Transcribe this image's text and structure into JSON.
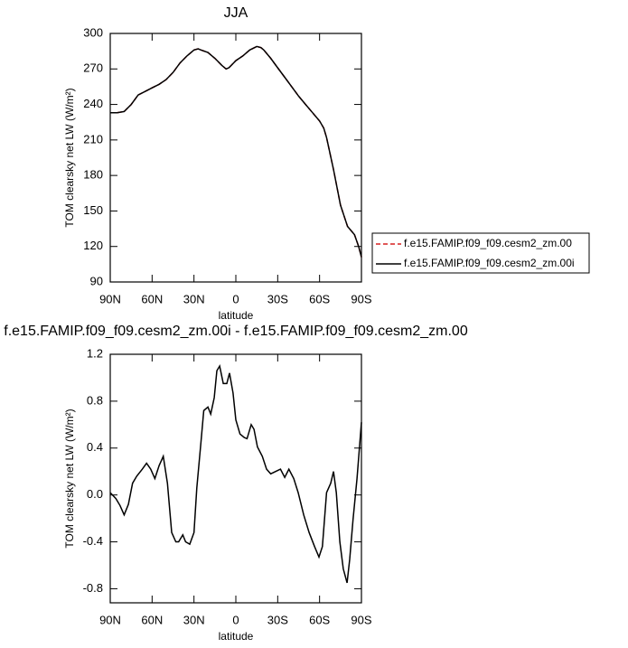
{
  "chart_data": [
    {
      "type": "line",
      "title": "JJA",
      "xlabel": "latitude",
      "ylabel": "TOM clearsky net LW (W/m²)",
      "x": [
        90,
        85,
        80,
        75,
        70,
        65,
        60,
        55,
        50,
        45,
        40,
        35,
        30,
        27,
        25,
        20,
        15,
        10,
        7,
        5,
        0,
        -5,
        -10,
        -15,
        -18,
        -20,
        -25,
        -30,
        -35,
        -40,
        -45,
        -50,
        -55,
        -60,
        -63,
        -65,
        -70,
        -75,
        -80,
        -85,
        -88,
        -90
      ],
      "series": [
        {
          "name": "f.e15.FAMIP.f09_f09.cesm2_zm.00",
          "color": "#d62020",
          "dash": true,
          "values": [
            233,
            233,
            234,
            240,
            248,
            251,
            254,
            257,
            261,
            267,
            275,
            281,
            286,
            287,
            286,
            284,
            279,
            273,
            270,
            271,
            277,
            281,
            286,
            289,
            288,
            286,
            279,
            271,
            263,
            255,
            247,
            240,
            233,
            226,
            220,
            212,
            185,
            155,
            137,
            130,
            120,
            111
          ]
        },
        {
          "name": "f.e15.FAMIP.f09_f09.cesm2_zm.00i",
          "color": "#000000",
          "dash": false,
          "values": [
            233,
            233,
            234,
            240,
            248,
            251,
            254,
            257,
            261,
            267,
            275,
            281,
            286,
            287,
            286,
            284,
            279,
            273,
            270,
            271,
            277,
            281,
            286,
            289,
            288,
            286,
            279,
            271,
            263,
            255,
            247,
            240,
            233,
            226,
            220,
            212,
            185,
            155,
            137,
            130,
            120,
            111
          ]
        }
      ],
      "xlim": [
        90,
        -90
      ],
      "xticks": [
        {
          "value": 90,
          "label": "90N"
        },
        {
          "value": 60,
          "label": "60N"
        },
        {
          "value": 30,
          "label": "30N"
        },
        0,
        {
          "value": -30,
          "label": "30S"
        },
        {
          "value": -60,
          "label": "60S"
        },
        {
          "value": -90,
          "label": "90S"
        }
      ],
      "ylim": [
        90,
        300
      ],
      "yticks": [
        90,
        120,
        150,
        180,
        210,
        240,
        270,
        300
      ],
      "legend": "right"
    },
    {
      "type": "line",
      "title": "f.e15.FAMIP.f09_f09.cesm2_zm.00i - f.e15.FAMIP.f09_f09.cesm2_zm.00",
      "xlabel": "latitude",
      "ylabel": "TOM clearsky net LW (W/m²)",
      "x": [
        90,
        86,
        83,
        80,
        77,
        74,
        71,
        67,
        64,
        61,
        58,
        55,
        52,
        49,
        46,
        43,
        41,
        38,
        36,
        33,
        30,
        28,
        25,
        23,
        20,
        18,
        15.5,
        13.6,
        11.6,
        9,
        6.5,
        4.5,
        2,
        0,
        -3,
        -6,
        -8,
        -11,
        -13,
        -15.5,
        -19,
        -22,
        -25,
        -28.5,
        -32,
        -35,
        -38,
        -41.5,
        -44.7,
        -48.6,
        -52.5,
        -56.4,
        -59.6,
        -62,
        -65,
        -68,
        -70,
        -72,
        -74.5,
        -77,
        -79.7,
        -81.6,
        -84,
        -86.8,
        -90
      ],
      "series": [
        {
          "name": "f.e15.FAMIP.f09_f09.cesm2_zm.00i - f.e15.FAMIP.f09_f09.cesm2_zm.00",
          "color": "#000000",
          "dash": false,
          "values": [
            0.02,
            -0.03,
            -0.09,
            -0.17,
            -0.08,
            0.1,
            0.16,
            0.22,
            0.27,
            0.22,
            0.14,
            0.25,
            0.33,
            0.1,
            -0.32,
            -0.4,
            -0.4,
            -0.34,
            -0.4,
            -0.42,
            -0.32,
            0.06,
            0.45,
            0.72,
            0.75,
            0.69,
            0.83,
            1.06,
            1.1,
            0.95,
            0.95,
            1.04,
            0.87,
            0.64,
            0.52,
            0.49,
            0.48,
            0.6,
            0.56,
            0.41,
            0.33,
            0.22,
            0.18,
            0.2,
            0.22,
            0.15,
            0.22,
            0.14,
            0.02,
            -0.17,
            -0.32,
            -0.44,
            -0.53,
            -0.44,
            0.02,
            0.1,
            0.2,
            0.02,
            -0.4,
            -0.63,
            -0.75,
            -0.55,
            -0.21,
            0.14,
            0.62
          ]
        }
      ],
      "xlim": [
        90,
        -90
      ],
      "xticks": [
        {
          "value": 90,
          "label": "90N"
        },
        {
          "value": 60,
          "label": "60N"
        },
        {
          "value": 30,
          "label": "30N"
        },
        0,
        {
          "value": -30,
          "label": "30S"
        },
        {
          "value": -60,
          "label": "60S"
        },
        {
          "value": -90,
          "label": "90S"
        }
      ],
      "ylim": [
        -0.92,
        1.2
      ],
      "yticks": [
        -0.8,
        -0.4,
        {
          "value": 0,
          "label": "0.0"
        },
        0.4,
        0.8,
        1.2
      ]
    }
  ]
}
